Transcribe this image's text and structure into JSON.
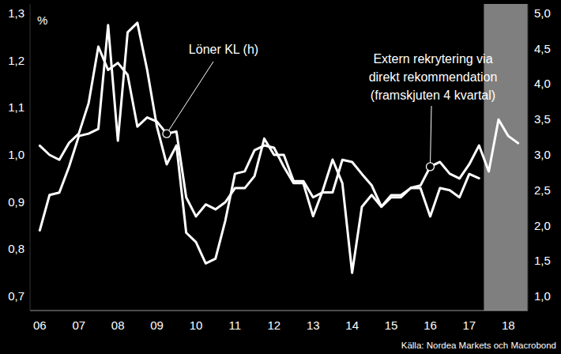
{
  "chart_data": {
    "type": "line",
    "ylabel": "%",
    "source": "Källa: Nordea Markets och Macrobond",
    "x": [
      2006.5,
      2006.75,
      2007.0,
      2007.25,
      2007.5,
      2007.75,
      2008.0,
      2008.25,
      2008.5,
      2008.75,
      2009.0,
      2009.25,
      2009.5,
      2009.75,
      2010.0,
      2010.25,
      2010.5,
      2010.75,
      2011.0,
      2011.25,
      2011.5,
      2011.75,
      2012.0,
      2012.25,
      2012.5,
      2012.75,
      2013.0,
      2013.25,
      2013.5,
      2013.75,
      2014.0,
      2014.25,
      2014.5,
      2014.75,
      2015.0,
      2015.25,
      2015.5,
      2015.75,
      2016.0,
      2016.25,
      2016.5,
      2016.75,
      2017.0,
      2017.25,
      2017.5,
      2017.75,
      2018.0,
      2018.25,
      2018.5,
      2018.75
    ],
    "xlim": [
      2006.25,
      2019.0
    ],
    "xticks": [
      {
        "value": 2006.5,
        "label": "06"
      },
      {
        "value": 2007.5,
        "label": "07"
      },
      {
        "value": 2008.5,
        "label": "08"
      },
      {
        "value": 2009.5,
        "label": "09"
      },
      {
        "value": 2010.5,
        "label": "10"
      },
      {
        "value": 2011.5,
        "label": "11"
      },
      {
        "value": 2012.5,
        "label": "12"
      },
      {
        "value": 2013.5,
        "label": "13"
      },
      {
        "value": 2014.5,
        "label": "14"
      },
      {
        "value": 2015.5,
        "label": "15"
      },
      {
        "value": 2016.5,
        "label": "16"
      },
      {
        "value": 2017.5,
        "label": "17"
      },
      {
        "value": 2018.5,
        "label": "18"
      }
    ],
    "ylim": [
      0.67,
      1.32
    ],
    "yticks": [
      {
        "value": 0.7,
        "label": "0,7"
      },
      {
        "value": 0.8,
        "label": "0,8"
      },
      {
        "value": 0.9,
        "label": "0,9"
      },
      {
        "value": 1.0,
        "label": "1,0"
      },
      {
        "value": 1.1,
        "label": "1,1"
      },
      {
        "value": 1.2,
        "label": "1,2"
      },
      {
        "value": 1.3,
        "label": "1,3"
      }
    ],
    "y2lim": [
      0.8,
      5.133
    ],
    "y2ticks": [
      {
        "value": 1.0,
        "label": "1,0"
      },
      {
        "value": 1.5,
        "label": "1,5"
      },
      {
        "value": 2.0,
        "label": "2,0"
      },
      {
        "value": 2.5,
        "label": "2,5"
      },
      {
        "value": 3.0,
        "label": "3,0"
      },
      {
        "value": 3.5,
        "label": "3,5"
      },
      {
        "value": 4.0,
        "label": "4,0"
      },
      {
        "value": 4.5,
        "label": "4,5"
      },
      {
        "value": 5.0,
        "label": "5,0"
      }
    ],
    "grid": false,
    "shaded_x": [
      2017.875,
      2019.0
    ],
    "series": [
      {
        "name": "Löner KL (h)",
        "color": "#ffffff",
        "axis": "y2",
        "values": [
          3.13,
          3.0,
          2.93,
          3.17,
          3.3,
          3.73,
          4.53,
          4.2,
          4.3,
          4.13,
          3.4,
          3.53,
          3.47,
          3.3,
          3.33,
          2.4,
          2.13,
          2.3,
          2.23,
          2.33,
          2.53,
          2.53,
          2.7,
          3.23,
          3.0,
          3.0,
          2.63,
          2.63,
          2.4,
          2.47,
          2.47,
          2.93,
          2.9,
          2.73,
          2.57,
          2.27,
          2.43,
          2.43,
          2.53,
          2.53,
          2.13,
          2.53,
          2.5,
          2.4,
          2.73,
          2.67,
          null,
          null,
          null,
          null
        ]
      },
      {
        "name": "Extern rekrytering via direkt rekommendation (framskjuten 4 kvartal)",
        "color": "#ffffff",
        "values": [
          0.84,
          0.915,
          0.92,
          0.975,
          1.04,
          1.045,
          1.055,
          1.275,
          1.03,
          1.26,
          1.28,
          1.18,
          1.06,
          0.98,
          1.02,
          0.835,
          0.815,
          0.77,
          0.78,
          0.86,
          0.96,
          0.965,
          1.01,
          1.02,
          1.015,
          0.975,
          0.94,
          0.94,
          0.87,
          0.925,
          0.99,
          0.94,
          0.75,
          0.89,
          0.915,
          0.89,
          0.91,
          0.91,
          0.93,
          0.935,
          0.975,
          0.985,
          0.96,
          0.95,
          0.98,
          1.02,
          0.965,
          1.075,
          1.04,
          1.025
        ]
      }
    ]
  }
}
